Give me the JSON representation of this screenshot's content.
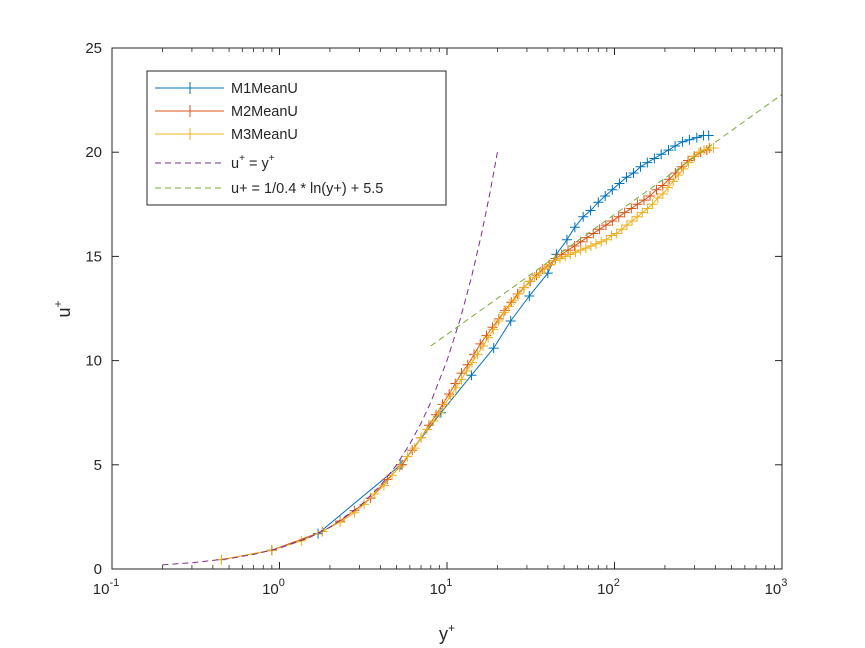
{
  "chart_data": {
    "type": "line",
    "xscale": "log",
    "xlim": [
      0.1,
      1000
    ],
    "ylim": [
      0,
      25
    ],
    "xticks": [
      {
        "base": "10",
        "exp": "-1"
      },
      {
        "base": "10",
        "exp": "0"
      },
      {
        "base": "10",
        "exp": "1"
      },
      {
        "base": "10",
        "exp": "2"
      },
      {
        "base": "10",
        "exp": "3"
      }
    ],
    "yticks": [
      "0",
      "5",
      "10",
      "15",
      "20",
      "25"
    ],
    "xlabel": {
      "base": "y",
      "sup": "+"
    },
    "ylabel": {
      "base": "u",
      "sup": "+"
    },
    "grid": false,
    "legend_position": "top-left",
    "legend": [
      {
        "text": "M1MeanU",
        "sup": "",
        "rest": ""
      },
      {
        "text": "M2MeanU",
        "sup": "",
        "rest": ""
      },
      {
        "text": "M3MeanU",
        "sup": "",
        "rest": ""
      },
      {
        "text": "u",
        "sup": "+",
        "rest": " = y",
        "sup2": "+"
      },
      {
        "text": "u+ = 1/0.4 * ln(y+) + 5.5",
        "sup": "",
        "rest": ""
      }
    ],
    "series": [
      {
        "name": "M1MeanU",
        "color": "#0072bd",
        "style": "solid-plus",
        "x": [
          0.9,
          1.7,
          5.3,
          9.2,
          14,
          19,
          24,
          31,
          40,
          45,
          52,
          58,
          65,
          72,
          80,
          88,
          97,
          107,
          118,
          130,
          143,
          157,
          173,
          190,
          210,
          230,
          255,
          280,
          310,
          340,
          365
        ],
        "y": [
          0.9,
          1.7,
          5.0,
          7.5,
          9.3,
          10.6,
          11.9,
          13.1,
          14.2,
          15.1,
          15.8,
          16.4,
          16.9,
          17.2,
          17.6,
          17.9,
          18.2,
          18.5,
          18.8,
          19.0,
          19.3,
          19.5,
          19.7,
          19.9,
          20.1,
          20.3,
          20.5,
          20.6,
          20.7,
          20.8,
          20.8
        ]
      },
      {
        "name": "M2MeanU",
        "color": "#d95319",
        "style": "solid-plus",
        "x": [
          0.45,
          0.9,
          1.8,
          2.3,
          2.8,
          3.5,
          4.4,
          5.4,
          6.2,
          7.0,
          7.8,
          8.6,
          9.4,
          10.3,
          11.2,
          12.2,
          13.3,
          14.5,
          15.8,
          17.2,
          18.7,
          20.4,
          22.2,
          24.2,
          26.4,
          28.8,
          31.4,
          34.2,
          37.3,
          40.7,
          44.4,
          48.4,
          52.8,
          57.6,
          62.8,
          68.5,
          74.7,
          81.5,
          88.9,
          97,
          106,
          115,
          126,
          137,
          150,
          163,
          178,
          194,
          212,
          231,
          252,
          275,
          300,
          327,
          356,
          370
        ],
        "y": [
          0.45,
          0.9,
          1.8,
          2.3,
          2.8,
          3.4,
          4.3,
          5.0,
          5.7,
          6.3,
          6.9,
          7.4,
          7.9,
          8.4,
          8.9,
          9.4,
          9.8,
          10.3,
          10.8,
          11.2,
          11.6,
          12.0,
          12.4,
          12.8,
          13.2,
          13.5,
          13.8,
          14.1,
          14.4,
          14.6,
          14.9,
          15.1,
          15.3,
          15.5,
          15.7,
          15.9,
          16.1,
          16.3,
          16.5,
          16.7,
          16.9,
          17.1,
          17.3,
          17.5,
          17.7,
          17.9,
          18.2,
          18.4,
          18.7,
          19.0,
          19.3,
          19.6,
          19.8,
          20.0,
          20.1,
          20.2
        ]
      },
      {
        "name": "M3MeanU",
        "color": "#edb120",
        "style": "solid-plus",
        "x": [
          0.45,
          0.9,
          1.35,
          1.8,
          2.3,
          2.8,
          3.2,
          3.7,
          4.2,
          4.7,
          5.2,
          5.8,
          6.4,
          7.0,
          7.6,
          8.3,
          9.0,
          9.7,
          10.5,
          11.3,
          12.2,
          13.1,
          14.1,
          15.2,
          16.4,
          17.6,
          18.9,
          20.3,
          21.8,
          23.4,
          25.1,
          26.9,
          28.9,
          31.0,
          33.3,
          35.7,
          38.3,
          41.1,
          44.1,
          47.3,
          50.8,
          54.5,
          58.5,
          62.8,
          67.4,
          72.3,
          77.6,
          83.3,
          89.4,
          96,
          103,
          110.5,
          118.6,
          127.3,
          136.6,
          146.6,
          157.3,
          168.8,
          181.2,
          194.5,
          208.7,
          224,
          240.4,
          258,
          276.9,
          297.2,
          319,
          342.4,
          367.5,
          390
        ],
        "y": [
          0.45,
          0.9,
          1.35,
          1.8,
          2.25,
          2.7,
          3.1,
          3.6,
          4.0,
          4.5,
          4.9,
          5.4,
          5.8,
          6.3,
          6.7,
          7.1,
          7.5,
          7.9,
          8.3,
          8.7,
          9.1,
          9.5,
          9.9,
          10.3,
          10.7,
          11.1,
          11.5,
          11.9,
          12.3,
          12.6,
          12.9,
          13.2,
          13.5,
          13.8,
          14.0,
          14.2,
          14.4,
          14.6,
          14.8,
          14.9,
          15.0,
          15.1,
          15.2,
          15.3,
          15.4,
          15.5,
          15.6,
          15.7,
          15.8,
          16.0,
          16.1,
          16.3,
          16.5,
          16.7,
          16.9,
          17.1,
          17.3,
          17.5,
          17.8,
          18.0,
          18.3,
          18.6,
          18.9,
          19.2,
          19.5,
          19.8,
          20.0,
          20.1,
          20.2,
          20.2
        ]
      },
      {
        "name": "u+ = y+",
        "color": "#7e2f8e",
        "style": "dashed",
        "x": [
          0.2,
          0.3,
          0.5,
          0.7,
          1,
          1.5,
          2,
          3,
          4,
          5,
          6,
          7,
          8,
          10,
          12,
          14,
          16,
          18,
          20
        ],
        "y": [
          0.2,
          0.3,
          0.5,
          0.7,
          1,
          1.5,
          2,
          3,
          4,
          5,
          6,
          7,
          8,
          10,
          12,
          14,
          16,
          18,
          20
        ]
      },
      {
        "name": "u+ = 1/0.4 * ln(y+) + 5.5",
        "color": "#77ac30",
        "style": "dashed",
        "x": [
          8,
          15,
          30,
          60,
          100,
          200,
          400,
          700,
          1000
        ],
        "y": [
          10.7,
          12.27,
          14.0,
          15.74,
          17.01,
          18.75,
          20.48,
          21.88,
          22.77
        ]
      }
    ]
  }
}
